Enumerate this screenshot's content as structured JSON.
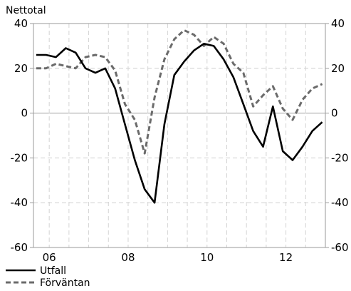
{
  "chart_data": {
    "type": "line",
    "ylabel": "Nettotal",
    "ylim": [
      -60,
      40
    ],
    "yticks": [
      40,
      20,
      0,
      -20,
      -40,
      -60
    ],
    "xlim": [
      2005.6,
      2013.0
    ],
    "x_tick_labels": [
      {
        "x": 2006,
        "label": "06"
      },
      {
        "x": 2008,
        "label": "08"
      },
      {
        "x": 2010,
        "label": "10"
      },
      {
        "x": 2012,
        "label": "12"
      }
    ],
    "v_gridlines": [
      2006,
      2006.5,
      2007,
      2007.5,
      2008,
      2008.5,
      2009,
      2009.5,
      2010,
      2010.5,
      2011,
      2011.5,
      2012,
      2012.5,
      2013
    ],
    "grid": true,
    "legend_position": "bottom-left",
    "series": [
      {
        "name": "Utfall",
        "style": "solid",
        "color": "#000000",
        "x": [
          2005.67,
          2005.92,
          2006.17,
          2006.42,
          2006.67,
          2006.92,
          2007.17,
          2007.42,
          2007.67,
          2007.92,
          2008.17,
          2008.42,
          2008.67,
          2008.92,
          2009.17,
          2009.42,
          2009.67,
          2009.92,
          2010.17,
          2010.42,
          2010.67,
          2010.92,
          2011.17,
          2011.42,
          2011.67,
          2011.92,
          2012.17,
          2012.42,
          2012.67,
          2012.92
        ],
        "values": [
          26,
          26,
          25,
          29,
          27,
          20,
          18,
          20,
          11,
          -5,
          -21,
          -34,
          -40,
          -5,
          17,
          23,
          28,
          31,
          30,
          24,
          16,
          4,
          -8,
          -15,
          3,
          -17,
          -21,
          -15,
          -8,
          -4
        ]
      },
      {
        "name": "Förväntan",
        "style": "dashed",
        "color": "#6b6b6b",
        "x": [
          2005.67,
          2005.92,
          2006.17,
          2006.42,
          2006.67,
          2006.92,
          2007.17,
          2007.42,
          2007.67,
          2007.92,
          2008.17,
          2008.42,
          2008.67,
          2008.92,
          2009.17,
          2009.42,
          2009.67,
          2009.92,
          2010.17,
          2010.42,
          2010.67,
          2010.92,
          2011.17,
          2011.42,
          2011.67,
          2011.92,
          2012.17,
          2012.42,
          2012.67,
          2012.92
        ],
        "values": [
          20,
          20,
          22,
          21,
          20,
          25,
          26,
          25,
          19,
          4,
          -3,
          -18,
          7,
          24,
          33,
          37,
          35,
          30,
          34,
          31,
          22,
          18,
          3,
          8,
          12,
          2,
          -3,
          6,
          11,
          13
        ]
      }
    ]
  }
}
